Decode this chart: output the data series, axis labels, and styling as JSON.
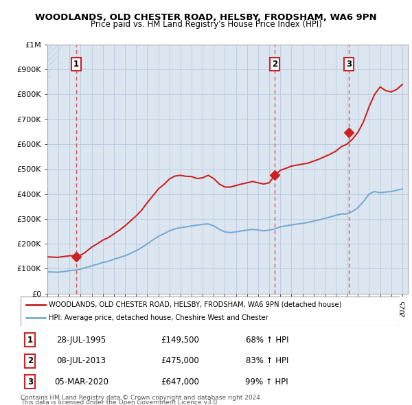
{
  "title": "WOODLANDS, OLD CHESTER ROAD, HELSBY, FRODSHAM, WA6 9PN",
  "subtitle": "Price paid vs. HM Land Registry's House Price Index (HPI)",
  "ylim": [
    0,
    1000000
  ],
  "yticks": [
    0,
    100000,
    200000,
    300000,
    400000,
    500000,
    600000,
    700000,
    800000,
    900000,
    1000000
  ],
  "ytick_labels": [
    "£0",
    "£100K",
    "£200K",
    "£300K",
    "£400K",
    "£500K",
    "£600K",
    "£700K",
    "£800K",
    "£900K",
    "£1M"
  ],
  "xlim": [
    1993.0,
    2025.5
  ],
  "xticks": [
    1993,
    1994,
    1995,
    1996,
    1997,
    1998,
    1999,
    2000,
    2001,
    2002,
    2003,
    2004,
    2005,
    2006,
    2007,
    2008,
    2009,
    2010,
    2011,
    2012,
    2013,
    2014,
    2015,
    2016,
    2017,
    2018,
    2019,
    2020,
    2021,
    2022,
    2023,
    2024,
    2025
  ],
  "background_color": "#ffffff",
  "plot_bg_color": "#dce6f0",
  "grid_color": "#b8c8dc",
  "transactions": [
    {
      "num": 1,
      "year": 1995.57,
      "price": 149500,
      "label": "28-JUL-1995",
      "price_str": "£149,500",
      "hpi_str": "68% ↑ HPI"
    },
    {
      "num": 2,
      "year": 2013.52,
      "price": 475000,
      "label": "08-JUL-2013",
      "price_str": "£475,000",
      "hpi_str": "83% ↑ HPI"
    },
    {
      "num": 3,
      "year": 2020.17,
      "price": 647000,
      "label": "05-MAR-2020",
      "price_str": "£647,000",
      "hpi_str": "99% ↑ HPI"
    }
  ],
  "red_line_color": "#cc2222",
  "blue_line_color": "#7aaad0",
  "dashed_line_color": "#dd4444",
  "legend_label_red": "WOODLANDS, OLD CHESTER ROAD, HELSBY, FRODSHAM, WA6 9PN (detached house)",
  "legend_label_blue": "HPI: Average price, detached house, Cheshire West and Chester",
  "footer1": "Contains HM Land Registry data © Crown copyright and database right 2024.",
  "footer2": "This data is licensed under the Open Government Licence v3.0.",
  "hpi_blue_data_x": [
    1993.0,
    1993.08,
    1993.17,
    1993.25,
    1993.33,
    1993.42,
    1993.5,
    1993.58,
    1993.67,
    1993.75,
    1993.83,
    1993.92,
    1994.0,
    1994.08,
    1994.17,
    1994.25,
    1994.33,
    1994.42,
    1994.5,
    1994.58,
    1994.67,
    1994.75,
    1994.83,
    1994.92,
    1995.0,
    1995.08,
    1995.17,
    1995.25,
    1995.33,
    1995.42,
    1995.5,
    1995.58,
    1995.67,
    1995.75,
    1995.83,
    1995.92,
    1996.0,
    1996.08,
    1996.17,
    1996.25,
    1996.33,
    1996.42,
    1996.5,
    1996.58,
    1996.67,
    1996.75,
    1996.83,
    1996.92,
    1997.0,
    1997.5,
    1998.0,
    1998.5,
    1999.0,
    1999.5,
    2000.0,
    2000.5,
    2001.0,
    2001.5,
    2002.0,
    2002.5,
    2003.0,
    2003.5,
    2004.0,
    2004.5,
    2005.0,
    2005.5,
    2006.0,
    2006.5,
    2007.0,
    2007.5,
    2008.0,
    2008.5,
    2009.0,
    2009.5,
    2010.0,
    2010.5,
    2011.0,
    2011.5,
    2012.0,
    2012.5,
    2013.0,
    2013.5,
    2014.0,
    2014.5,
    2015.0,
    2015.5,
    2016.0,
    2016.5,
    2017.0,
    2017.5,
    2018.0,
    2018.5,
    2019.0,
    2019.5,
    2020.0,
    2020.5,
    2021.0,
    2021.5,
    2022.0,
    2022.5,
    2023.0,
    2023.5,
    2024.0,
    2024.5,
    2025.0
  ],
  "hpi_blue_data_y": [
    88000,
    87500,
    87200,
    87000,
    86800,
    86600,
    86500,
    86300,
    86200,
    86000,
    85800,
    85600,
    86000,
    86500,
    87000,
    87500,
    88000,
    88500,
    89000,
    89500,
    90000,
    90500,
    91000,
    91500,
    92000,
    92500,
    93000,
    93500,
    94000,
    94000,
    94200,
    94500,
    95000,
    96000,
    97000,
    98000,
    99000,
    100000,
    101000,
    102000,
    103000,
    104000,
    105000,
    106000,
    107000,
    108000,
    109000,
    110000,
    112000,
    118000,
    125000,
    130000,
    138000,
    145000,
    152000,
    162000,
    172000,
    185000,
    200000,
    215000,
    230000,
    240000,
    252000,
    260000,
    265000,
    268000,
    272000,
    275000,
    278000,
    280000,
    272000,
    258000,
    248000,
    245000,
    248000,
    252000,
    255000,
    258000,
    255000,
    252000,
    255000,
    260000,
    268000,
    272000,
    276000,
    279000,
    282000,
    286000,
    291000,
    296000,
    302000,
    308000,
    314000,
    320000,
    320000,
    330000,
    345000,
    370000,
    400000,
    410000,
    405000,
    408000,
    410000,
    415000,
    420000
  ],
  "red_hpi_data_x": [
    1993.0,
    1993.08,
    1993.17,
    1993.25,
    1993.33,
    1993.42,
    1993.5,
    1993.58,
    1993.67,
    1993.75,
    1993.83,
    1993.92,
    1994.0,
    1994.08,
    1994.17,
    1994.25,
    1994.33,
    1994.42,
    1994.5,
    1994.58,
    1994.67,
    1994.75,
    1994.83,
    1994.92,
    1995.0,
    1995.08,
    1995.17,
    1995.25,
    1995.33,
    1995.42,
    1995.5,
    1995.58,
    1995.67,
    1995.75,
    1995.83,
    1995.92,
    1996.0,
    1996.08,
    1996.17,
    1996.25,
    1996.33,
    1996.42,
    1996.5,
    1996.58,
    1996.67,
    1996.75,
    1996.83,
    1996.92,
    1997.0,
    1997.5,
    1998.0,
    1998.5,
    1999.0,
    1999.5,
    2000.0,
    2000.5,
    2001.0,
    2001.5,
    2002.0,
    2002.5,
    2003.0,
    2003.5,
    2004.0,
    2004.5,
    2005.0,
    2005.5,
    2006.0,
    2006.5,
    2007.0,
    2007.5,
    2008.0,
    2008.5,
    2009.0,
    2009.5,
    2010.0,
    2010.5,
    2011.0,
    2011.5,
    2012.0,
    2012.5,
    2013.0,
    2013.5,
    2014.0,
    2014.5,
    2015.0,
    2015.5,
    2016.0,
    2016.5,
    2017.0,
    2017.5,
    2018.0,
    2018.5,
    2019.0,
    2019.5,
    2020.0,
    2020.5,
    2021.0,
    2021.5,
    2022.0,
    2022.5,
    2023.0,
    2023.5,
    2024.0,
    2024.5,
    2025.0
  ],
  "red_hpi_data_y": [
    148000,
    147500,
    147200,
    147000,
    146800,
    146600,
    146500,
    146300,
    146200,
    146000,
    145800,
    145600,
    146000,
    146500,
    147000,
    147500,
    148000,
    148500,
    149000,
    149500,
    150000,
    150500,
    151000,
    151500,
    152000,
    152200,
    152400,
    152500,
    152500,
    152000,
    151500,
    151000,
    151500,
    152000,
    153000,
    154000,
    155000,
    157000,
    159000,
    161000,
    163000,
    166000,
    169000,
    172000,
    175000,
    178000,
    181000,
    184000,
    187000,
    200000,
    215000,
    225000,
    240000,
    255000,
    272000,
    292000,
    312000,
    335000,
    365000,
    392000,
    420000,
    438000,
    460000,
    472000,
    475000,
    471000,
    470000,
    462000,
    465000,
    475000,
    462000,
    440000,
    428000,
    428000,
    434000,
    440000,
    445000,
    450000,
    445000,
    440000,
    445000,
    475000,
    495000,
    503000,
    512000,
    516000,
    520000,
    524000,
    532000,
    540000,
    550000,
    560000,
    572000,
    590000,
    600000,
    620000,
    648000,
    690000,
    750000,
    800000,
    830000,
    815000,
    810000,
    820000,
    840000
  ]
}
